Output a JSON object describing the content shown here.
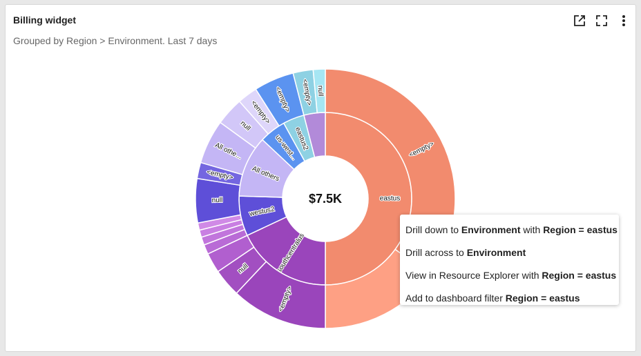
{
  "widget": {
    "title": "Billing widget",
    "subtitle": "Grouped by Region > Environment. Last 7 days"
  },
  "toolbar": {
    "icons": [
      "open-external-icon",
      "fullscreen-icon",
      "more-vertical-icon"
    ]
  },
  "chart_data": {
    "type": "sunburst",
    "center_label": "$7.5K",
    "inner": [
      {
        "name": "eastus",
        "value": 50.0,
        "color": "#f28b6e",
        "label": "eastus"
      },
      {
        "name": "southcentralus",
        "value": 18.0,
        "color": "#9a45bb",
        "label": "southcentralus"
      },
      {
        "name": "westus2",
        "value": 7.5,
        "color": "#5e4fd8",
        "label": "westus2"
      },
      {
        "name": "All others",
        "value": 11.5,
        "color": "#c4b6f5",
        "label": "All others"
      },
      {
        "name": "us-west...",
        "value": 5.0,
        "color": "#5b93f0",
        "label": "us-west..."
      },
      {
        "name": "eastus2",
        "value": 4.0,
        "color": "#8ed1e3",
        "label": "eastus2"
      },
      {
        "name": "",
        "value": 4.0,
        "color": "#b28ad9",
        "label": ""
      }
    ],
    "outer": [
      {
        "name": "<empty>",
        "parent": "eastus",
        "value": 35.0,
        "color": "#f28b6e",
        "label": "<empty>"
      },
      {
        "name": "",
        "parent": "eastus",
        "value": 15.0,
        "color": "#fea084",
        "label": ""
      },
      {
        "name": "<empty>",
        "parent": "southcentralus",
        "value": 12.0,
        "color": "#9a45bb",
        "label": "<empty>"
      },
      {
        "name": "null",
        "parent": "southcentralus",
        "value": 3.5,
        "color": "#a24fc1",
        "label": "null"
      },
      {
        "name": "",
        "parent": "southcentralus",
        "value": 2.5,
        "color": "#b15fcf",
        "label": ""
      },
      {
        "name": "",
        "parent": "",
        "value": 1.2,
        "color": "#b96bd6",
        "label": ""
      },
      {
        "name": "",
        "parent": "",
        "value": 1.0,
        "color": "#c175dc",
        "label": ""
      },
      {
        "name": "",
        "parent": "",
        "value": 0.9,
        "color": "#c97fe2",
        "label": ""
      },
      {
        "name": "",
        "parent": "",
        "value": 0.9,
        "color": "#d08ae6",
        "label": ""
      },
      {
        "name": "null",
        "parent": "westus2",
        "value": 5.5,
        "color": "#5e4fd8",
        "label": "null"
      },
      {
        "name": "<empty>",
        "parent": "westus2",
        "value": 2.0,
        "color": "#7466e0",
        "label": "<empty>"
      },
      {
        "name": "All othe...",
        "parent": "All others",
        "value": 5.5,
        "color": "#c4b6f5",
        "label": "All othe..."
      },
      {
        "name": "null",
        "parent": "All others",
        "value": 3.5,
        "color": "#d2c7f8",
        "label": "null"
      },
      {
        "name": "<empty>",
        "parent": "All others",
        "value": 2.5,
        "color": "#ded6fa",
        "label": "<empty>"
      },
      {
        "name": "<empty>",
        "parent": "us-west...",
        "value": 5.0,
        "color": "#5b93f0",
        "label": "<empty>"
      },
      {
        "name": "<empty>",
        "parent": "eastus2",
        "value": 2.5,
        "color": "#8ed1e3",
        "label": "<empty>"
      },
      {
        "name": "null",
        "parent": "eastus2",
        "value": 1.5,
        "color": "#a6e6f3",
        "label": "null"
      }
    ]
  },
  "context_menu": {
    "items": [
      {
        "prefix": "Drill down to ",
        "bold1": "Environment",
        "middle": " with ",
        "bold2": "Region = eastus"
      },
      {
        "prefix": "Drill across to ",
        "bold1": "Environment",
        "middle": "",
        "bold2": ""
      },
      {
        "prefix": "View in Resource Explorer with ",
        "bold1": "Region = eastus",
        "middle": "",
        "bold2": ""
      },
      {
        "prefix": "Add to dashboard filter ",
        "bold1": "Region = eastus",
        "middle": "",
        "bold2": ""
      }
    ]
  }
}
